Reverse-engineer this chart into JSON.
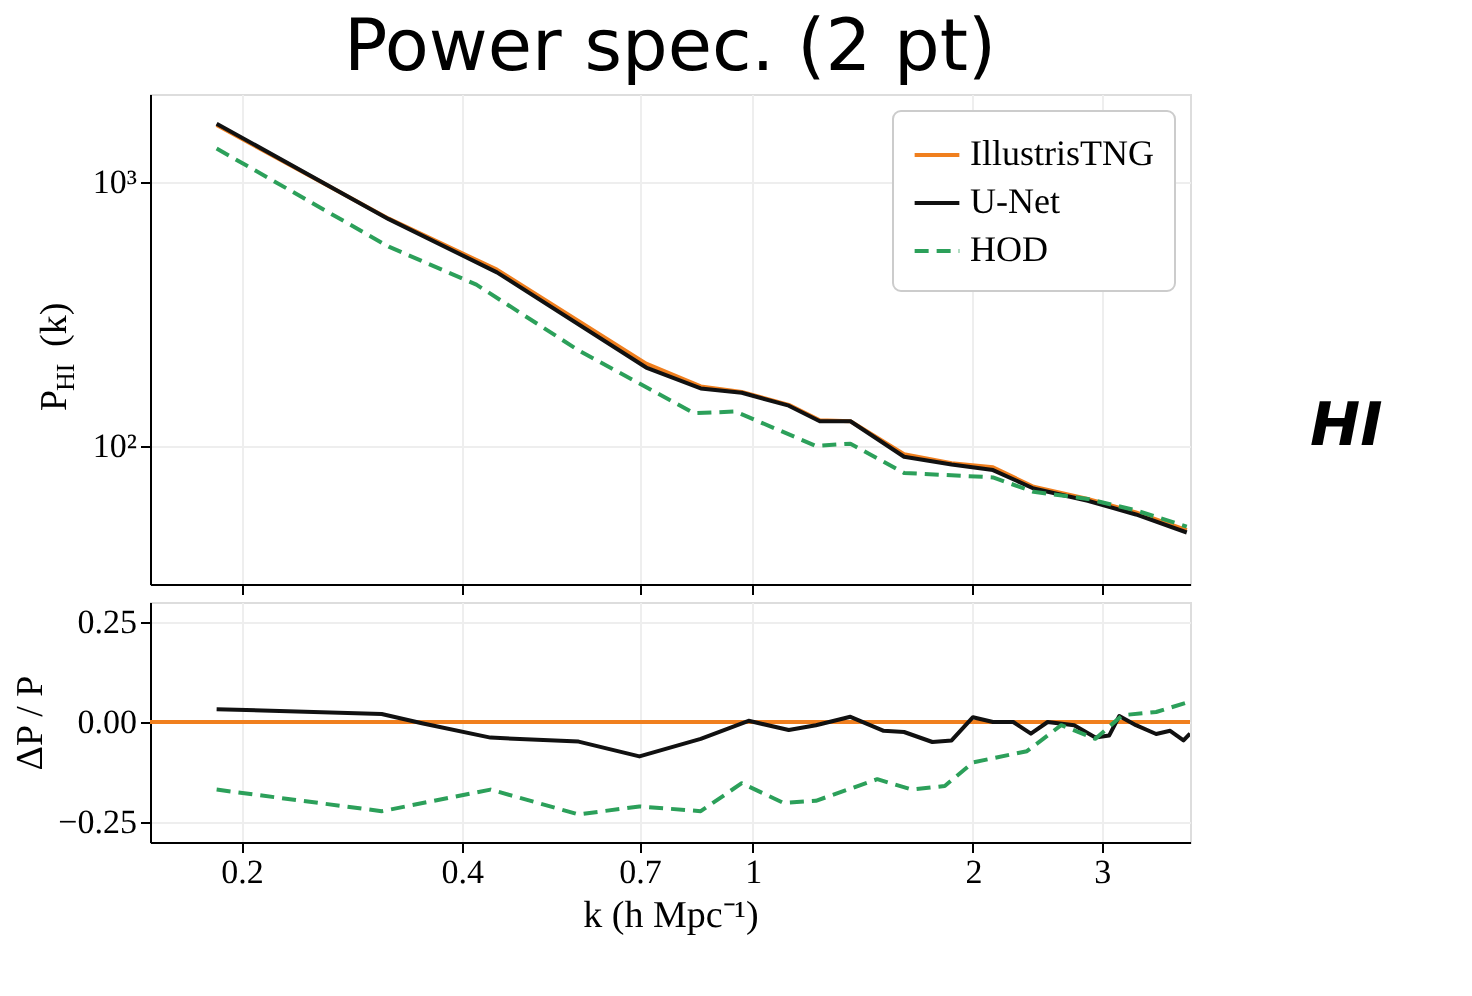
{
  "chart_data": [
    {
      "type": "line",
      "title": "Power spec. (2 pt)",
      "ylabel": "P$_{HI}$ (k)",
      "log": "xy",
      "grid": true,
      "legend": "top right",
      "tick_labels": "y",
      "xlim": [
        0.15,
        3.96
      ],
      "xticks": [
        0.2,
        0.4,
        0.7,
        1,
        2,
        3
      ],
      "ylim": [
        30,
        2150
      ],
      "yticks": [
        {
          "value": 100,
          "label": "10²"
        },
        {
          "value": 1000,
          "label": "10³"
        }
      ],
      "annotations": [
        "HI"
      ],
      "series": [
        {
          "name": "IllustrisTNG",
          "color": "#f07f1e",
          "line_style": "solid",
          "x": [
            0.185,
            0.318,
            0.447,
            0.715,
            0.849,
            0.966,
            1.12,
            1.235,
            1.36,
            1.61,
            1.87,
            2.13,
            2.42,
            2.87,
            3.34,
            3.92
          ],
          "values": [
            1640,
            725,
            465,
            205,
            168,
            160,
            143,
            125,
            124,
            93,
            86,
            83,
            70,
            63,
            56,
            48
          ]
        },
        {
          "name": "U-Net",
          "color": "#111111",
          "line_style": "solid",
          "x": [
            0.185,
            0.318,
            0.447,
            0.715,
            0.849,
            0.966,
            1.12,
            1.235,
            1.36,
            1.61,
            1.87,
            2.13,
            2.42,
            2.87,
            3.34,
            3.92
          ],
          "values": [
            1660,
            722,
            454,
            198,
            165,
            159,
            142,
            124,
            124,
            91,
            85,
            81,
            69,
            62,
            55,
            47
          ]
        },
        {
          "name": "HOD",
          "color": "#2ca05a",
          "line_style": "dashed",
          "x": [
            0.185,
            0.318,
            0.419,
            0.578,
            0.831,
            0.946,
            1.22,
            1.36,
            1.61,
            2.13,
            2.42,
            2.87,
            3.34,
            3.92
          ],
          "values": [
            1337,
            568,
            408,
            230,
            133,
            135,
            100,
            102,
            79,
            76,
            67,
            63,
            57,
            49.5
          ]
        }
      ]
    },
    {
      "type": "line",
      "xlabel": "k (h Mpc⁻¹)",
      "ylabel": "ΔP / P",
      "log": "x",
      "grid": true,
      "xlim": [
        0.15,
        3.96
      ],
      "xticks": [
        0.2,
        0.4,
        0.7,
        1,
        2,
        3
      ],
      "ylim": [
        -0.3,
        0.3
      ],
      "yticks": [
        {
          "value": 0.25,
          "label": "0.25"
        },
        {
          "value": 0,
          "label": "0.00"
        },
        {
          "value": -0.25,
          "label": "−0.25"
        }
      ],
      "series": [
        {
          "color": "#f07f1e",
          "line_style": "solid",
          "x": [
            0.15,
            3.96
          ],
          "values": [
            0,
            0
          ]
        },
        {
          "color": "#111111",
          "line_style": "solid",
          "x": [
            0.185,
            0.311,
            0.353,
            0.438,
            0.578,
            0.7,
            0.849,
            0.987,
            1.12,
            1.22,
            1.36,
            1.51,
            1.61,
            1.76,
            1.87,
            2.0,
            2.13,
            2.27,
            2.4,
            2.53,
            2.75,
            2.94,
            3.07,
            3.17,
            3.34,
            3.56,
            3.72,
            3.88,
            3.96
          ],
          "values": [
            0.032,
            0.02,
            -0.003,
            -0.039,
            -0.049,
            -0.086,
            -0.042,
            0.003,
            -0.02,
            -0.008,
            0.013,
            -0.022,
            -0.025,
            -0.05,
            -0.046,
            0.012,
            0,
            0,
            -0.029,
            0,
            -0.008,
            -0.039,
            -0.034,
            0.015,
            -0.008,
            -0.03,
            -0.022,
            -0.046,
            -0.029
          ]
        },
        {
          "color": "#2ca05a",
          "line_style": "dashed",
          "x": [
            0.185,
            0.311,
            0.438,
            0.578,
            0.7,
            0.849,
            0.966,
            1.1,
            1.22,
            1.48,
            1.65,
            1.83,
            2.0,
            2.37,
            2.64,
            2.94,
            3.2,
            3.56,
            3.96
          ],
          "values": [
            -0.169,
            -0.223,
            -0.169,
            -0.231,
            -0.211,
            -0.223,
            -0.153,
            -0.202,
            -0.197,
            -0.143,
            -0.169,
            -0.16,
            -0.101,
            -0.073,
            -0.008,
            -0.042,
            0.017,
            0.025,
            0.051
          ]
        }
      ]
    }
  ]
}
